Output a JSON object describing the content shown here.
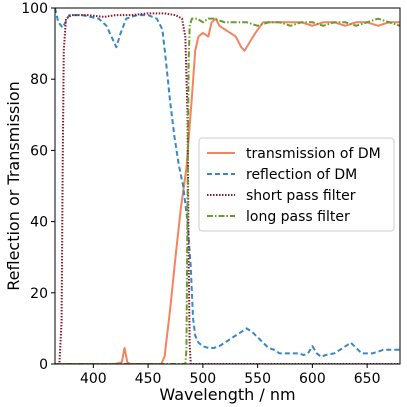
{
  "chart_data": {
    "type": "line",
    "title": "",
    "xlabel": "Wavelength / nm",
    "ylabel": "Reflection or Transmission",
    "xlim": [
      365,
      680
    ],
    "ylim": [
      0,
      100
    ],
    "xticks": [
      400,
      450,
      500,
      550,
      600,
      650
    ],
    "yticks": [
      0,
      20,
      40,
      60,
      80,
      100
    ],
    "grid": false,
    "legend_position": "center-right",
    "series": [
      {
        "name": "transmission of DM",
        "color": "#f4845f",
        "style": "solid",
        "points": [
          [
            365,
            0
          ],
          [
            420,
            0
          ],
          [
            426,
            0.5
          ],
          [
            428.5,
            4.5
          ],
          [
            431,
            0.5
          ],
          [
            434,
            0
          ],
          [
            462,
            0
          ],
          [
            465,
            2
          ],
          [
            470,
            15
          ],
          [
            475,
            30
          ],
          [
            480,
            44
          ],
          [
            485,
            55
          ],
          [
            490,
            75
          ],
          [
            493,
            88
          ],
          [
            496,
            92
          ],
          [
            500,
            93
          ],
          [
            505,
            92
          ],
          [
            508,
            96
          ],
          [
            512,
            97
          ],
          [
            515,
            95
          ],
          [
            520,
            94
          ],
          [
            525,
            93
          ],
          [
            530,
            92
          ],
          [
            535,
            89
          ],
          [
            538,
            88
          ],
          [
            542,
            90
          ],
          [
            548,
            93
          ],
          [
            555,
            96
          ],
          [
            565,
            96
          ],
          [
            575,
            96
          ],
          [
            590,
            96
          ],
          [
            600,
            95
          ],
          [
            610,
            96
          ],
          [
            620,
            96
          ],
          [
            630,
            95
          ],
          [
            640,
            96
          ],
          [
            650,
            96
          ],
          [
            660,
            95
          ],
          [
            670,
            96
          ],
          [
            680,
            96
          ]
        ]
      },
      {
        "name": "reflection of DM",
        "color": "#3a87c7",
        "style": "dashed",
        "points": [
          [
            365,
            100
          ],
          [
            368,
            96
          ],
          [
            372,
            94.5
          ],
          [
            378,
            98
          ],
          [
            390,
            98
          ],
          [
            405,
            97
          ],
          [
            412,
            95
          ],
          [
            418,
            91
          ],
          [
            421,
            89
          ],
          [
            425,
            93
          ],
          [
            430,
            97
          ],
          [
            440,
            98
          ],
          [
            450,
            98
          ],
          [
            458,
            97
          ],
          [
            463,
            94
          ],
          [
            466,
            86
          ],
          [
            470,
            74
          ],
          [
            474,
            64
          ],
          [
            478,
            56
          ],
          [
            482,
            50
          ],
          [
            486,
            40
          ],
          [
            489,
            27
          ],
          [
            491,
            13
          ],
          [
            493,
            8
          ],
          [
            496,
            6
          ],
          [
            500,
            5
          ],
          [
            505,
            4.5
          ],
          [
            510,
            4.5
          ],
          [
            515,
            5
          ],
          [
            520,
            6
          ],
          [
            525,
            7
          ],
          [
            530,
            8
          ],
          [
            535,
            9
          ],
          [
            540,
            10
          ],
          [
            545,
            9
          ],
          [
            550,
            7.5
          ],
          [
            555,
            6
          ],
          [
            560,
            4.5
          ],
          [
            565,
            4
          ],
          [
            570,
            3
          ],
          [
            580,
            3
          ],
          [
            588,
            3
          ],
          [
            592,
            2.5
          ],
          [
            596,
            3
          ],
          [
            600,
            5
          ],
          [
            604,
            3
          ],
          [
            608,
            2
          ],
          [
            612,
            2.5
          ],
          [
            620,
            3
          ],
          [
            628,
            4.5
          ],
          [
            635,
            6
          ],
          [
            640,
            4.5
          ],
          [
            645,
            3
          ],
          [
            655,
            3
          ],
          [
            665,
            4
          ],
          [
            672,
            4
          ],
          [
            680,
            4
          ]
        ]
      },
      {
        "name": "short pass filter",
        "color": "#8b1a2e",
        "style": "dotted",
        "points": [
          [
            365,
            0
          ],
          [
            369,
            0
          ],
          [
            371,
            12
          ],
          [
            372,
            55
          ],
          [
            373,
            88
          ],
          [
            375,
            97
          ],
          [
            380,
            98
          ],
          [
            395,
            98
          ],
          [
            410,
            97.5
          ],
          [
            420,
            98
          ],
          [
            435,
            98
          ],
          [
            450,
            98.5
          ],
          [
            465,
            98.5
          ],
          [
            475,
            98
          ],
          [
            481,
            97
          ],
          [
            484,
            92
          ],
          [
            486,
            70
          ],
          [
            487,
            30
          ],
          [
            488,
            5
          ],
          [
            489,
            0
          ],
          [
            680,
            0
          ]
        ]
      },
      {
        "name": "long pass filter",
        "color": "#6b9a2a",
        "style": "dashdot",
        "points": [
          [
            365,
            0
          ],
          [
            484,
            0
          ],
          [
            485,
            4
          ],
          [
            486,
            45
          ],
          [
            487,
            85
          ],
          [
            488,
            95
          ],
          [
            490,
            97
          ],
          [
            495,
            97
          ],
          [
            500,
            96
          ],
          [
            505,
            97
          ],
          [
            510,
            97
          ],
          [
            520,
            96
          ],
          [
            530,
            96
          ],
          [
            540,
            96
          ],
          [
            550,
            95
          ],
          [
            560,
            96
          ],
          [
            570,
            96
          ],
          [
            580,
            95
          ],
          [
            590,
            96
          ],
          [
            600,
            96
          ],
          [
            610,
            95
          ],
          [
            620,
            96
          ],
          [
            630,
            96
          ],
          [
            640,
            95
          ],
          [
            650,
            96
          ],
          [
            660,
            97
          ],
          [
            670,
            96
          ],
          [
            680,
            95
          ]
        ]
      }
    ]
  }
}
